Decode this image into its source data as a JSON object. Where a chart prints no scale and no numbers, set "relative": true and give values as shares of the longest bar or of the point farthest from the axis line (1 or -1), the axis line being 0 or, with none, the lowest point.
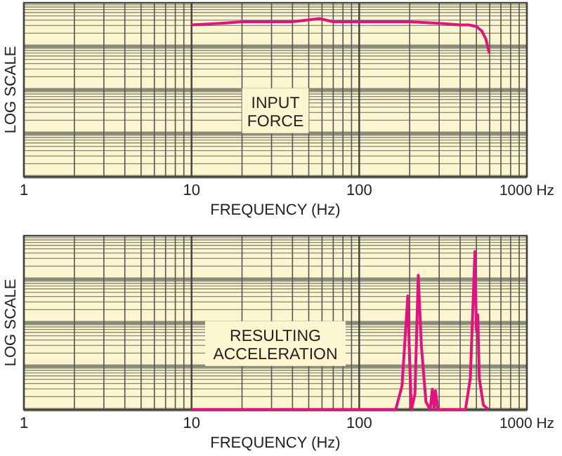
{
  "chart_data": [
    {
      "type": "line",
      "relative": true,
      "log": "x",
      "xlabel": "FREQUENCY (Hz)",
      "ylabel": "LOG SCALE",
      "xlim": [
        1,
        1000
      ],
      "xticks": [
        1,
        10,
        100,
        {
          "value": 1000,
          "label": "1000 Hz"
        }
      ],
      "grid": true,
      "marker": "none",
      "line_style": "solid",
      "annotations": [
        "INPUT\nFORCE"
      ],
      "series": [
        {
          "color": "#e0147f",
          "x": [
            10,
            15,
            20,
            30,
            40,
            58,
            70,
            100,
            150,
            200,
            300,
            400,
            450,
            500,
            540,
            570,
            597
          ],
          "values": [
            0.96,
            0.97,
            0.98,
            0.98,
            0.98,
            1.0,
            0.98,
            0.98,
            0.98,
            0.98,
            0.97,
            0.96,
            0.96,
            0.95,
            0.92,
            0.87,
            0.78
          ]
        }
      ]
    },
    {
      "type": "line",
      "relative": true,
      "log": "x",
      "xlabel": "FREQUENCY (Hz)",
      "ylabel": "LOG SCALE",
      "xlim": [
        1,
        1000
      ],
      "xticks": [
        1,
        10,
        100,
        {
          "value": 1000,
          "label": "1000 Hz"
        }
      ],
      "grid": true,
      "marker": "none",
      "line_style": "solid",
      "annotations": [
        "RESULTING\nACCELERATION"
      ],
      "series": [
        {
          "color": "#e0147f",
          "x": [
            10,
            165,
            180,
            195,
            200,
            205,
            215,
            225,
            235,
            250,
            265,
            273,
            280,
            285,
            295,
            430,
            460,
            490,
            500,
            510,
            520,
            550,
            590
          ],
          "values": [
            0,
            0,
            0.15,
            0.72,
            0.3,
            0,
            0.1,
            0.85,
            0.4,
            0.05,
            0,
            0.13,
            0,
            0.12,
            0,
            0,
            0.2,
            1.0,
            0.5,
            0.6,
            0.2,
            0.03,
            0
          ]
        }
      ]
    }
  ]
}
